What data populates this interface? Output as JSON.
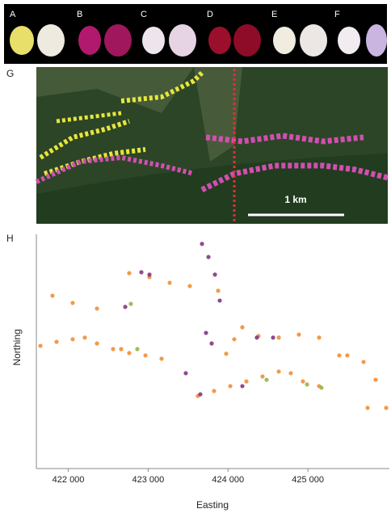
{
  "panels": {
    "photo_labels": [
      "A",
      "B",
      "C",
      "D",
      "E",
      "F"
    ],
    "map_label": "G",
    "scale_bar": "1 km"
  },
  "chart_data": {
    "type": "scatter",
    "panel_label": "H",
    "xlabel": "Easting",
    "ylabel": "Northing",
    "xlim": [
      421600,
      426000
    ],
    "xticks": [
      {
        "value": 422000,
        "label": "422 000"
      },
      {
        "value": 423000,
        "label": "423 000"
      },
      {
        "value": 424000,
        "label": "424 000"
      },
      {
        "value": 425000,
        "label": "425 000"
      }
    ],
    "ylim": [
      0,
      100
    ],
    "series": [
      {
        "color": "#f0882a",
        "x": [
          421651,
          421853,
          422055,
          422207,
          422359,
          422561,
          422763,
          422966,
          423168,
          423623,
          423825,
          424028,
          424230,
          424432,
          424635,
          424786,
          424938,
          425140,
          425494,
          425697,
          425848,
          425980,
          421802,
          422055,
          422359,
          422763,
          423016,
          423269,
          423522,
          423977,
          424078,
          424179,
          424381,
          424635,
          424887,
          425140,
          425393,
          425747,
          423876,
          422662
        ],
        "y": [
          52.4,
          54.1,
          55.2,
          55.9,
          53.4,
          51.0,
          49.3,
          48.3,
          46.9,
          31.0,
          33.1,
          35.2,
          37.2,
          39.3,
          41.4,
          40.7,
          37.2,
          35.2,
          48.3,
          45.5,
          37.9,
          25.9,
          73.8,
          70.7,
          68.3,
          83.4,
          81.7,
          79.3,
          77.9,
          49.0,
          55.2,
          60.3,
          56.6,
          55.9,
          57.2,
          55.9,
          48.3,
          25.9,
          75.9,
          51.0
        ]
      },
      {
        "color": "#7b2a7e",
        "x": [
          423674,
          423755,
          423836,
          423896,
          422915,
          423016,
          423724,
          423795,
          424361,
          424564,
          423653,
          424179,
          422713,
          423471
        ],
        "y": [
          95.9,
          90.3,
          82.8,
          71.7,
          83.8,
          82.8,
          57.9,
          53.4,
          55.9,
          55.9,
          31.7,
          35.2,
          69.0,
          40.7
        ]
      },
      {
        "color": "#8cb43c",
        "x": [
          424989,
          424483,
          422783,
          425170,
          422864
        ],
        "y": [
          35.9,
          37.9,
          70.3,
          34.5,
          51.0
        ]
      }
    ]
  }
}
